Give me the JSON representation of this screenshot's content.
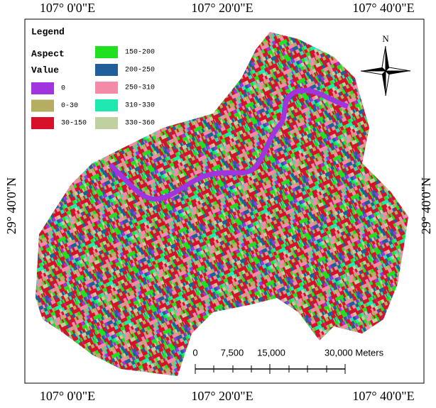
{
  "map": {
    "top_labels": [
      "107° 0'0\"E",
      "107° 20'0\"E",
      "107° 40'0\"E"
    ],
    "bottom_labels": [
      "107° 0'0\"E",
      "107° 20'0\"E",
      "107° 40'0\"E"
    ],
    "left_label": "29° 40'0\"N",
    "right_label": "29° 40'0\"N"
  },
  "legend": {
    "title": "Legend",
    "field": "Aspect",
    "subtitle": "Value",
    "items": [
      {
        "label": "0",
        "color": "#a035e0"
      },
      {
        "label": "0-30",
        "color": "#b5ae62"
      },
      {
        "label": "30-150",
        "color": "#d8112a"
      },
      {
        "label": "150-200",
        "color": "#20e020"
      },
      {
        "label": "200-250",
        "color": "#205f9a"
      },
      {
        "label": "250-310",
        "color": "#f28aa8"
      },
      {
        "label": "310-330",
        "color": "#1fe8b0"
      },
      {
        "label": "330-360",
        "color": "#c0d0a0"
      }
    ]
  },
  "north_arrow": "N",
  "scale_bar": {
    "labels": [
      "0",
      "7,500",
      "15,000",
      "30,000 Meters"
    ]
  }
}
